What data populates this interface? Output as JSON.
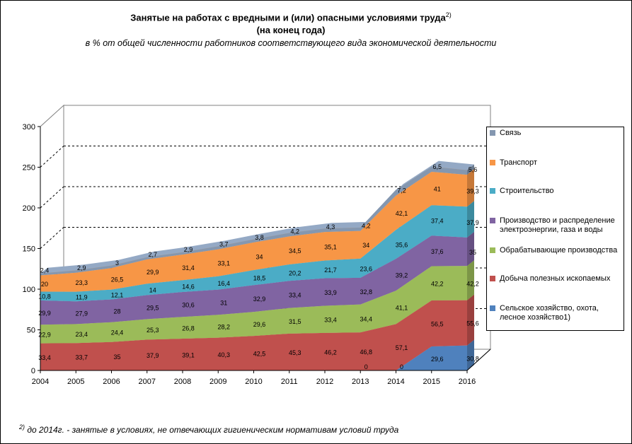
{
  "title_line1": "Занятые на работах с вредными и (или) опасными условиями труда",
  "title_sup": "2)",
  "title_line2": "(на конец года)",
  "subtitle": "в % от общей численности работников соответствующего вида экономической  деятельности",
  "footnote_mark": "2)",
  "footnote": " до 2014г. - занятые в условиях, не отвечающих гигиеническим нормативам условий труда",
  "chart_data": {
    "type": "area",
    "stacked": true,
    "three_d": true,
    "x": [
      "2004",
      "2005",
      "2006",
      "2007",
      "2008",
      "2009",
      "2010",
      "2011",
      "2012",
      "2013",
      "2014",
      "2015",
      "2016"
    ],
    "ylim": [
      0,
      300
    ],
    "yticks": [
      0,
      50,
      100,
      150,
      200,
      250,
      300
    ],
    "grid": "dashed lines on back wall",
    "legend_position": "right",
    "series": [
      {
        "name": "Сельское хозяйство, охота, лесное хозяйство1)",
        "color": "#4f81bd",
        "values": [
          null,
          null,
          null,
          null,
          null,
          null,
          null,
          null,
          null,
          0,
          0,
          29.6,
          30.8
        ],
        "labels": [
          "",
          "",
          "",
          "",
          "",
          "",
          "",
          "",
          "",
          "0",
          "0",
          "29,6",
          "30,8"
        ]
      },
      {
        "name": "Добыча полезных ископаемых",
        "color": "#c0504d",
        "values": [
          33.4,
          33.7,
          35,
          37.9,
          39.1,
          40.3,
          42.5,
          45.3,
          46.2,
          46.8,
          57.1,
          56.5,
          55.6
        ],
        "labels": [
          "33,4",
          "33,7",
          "35",
          "37,9",
          "39,1",
          "40,3",
          "42,5",
          "45,3",
          "46,2",
          "46,8",
          "57,1",
          "56,5",
          "55,6"
        ]
      },
      {
        "name": "Обрабатывающие производства",
        "color": "#9bbb59",
        "values": [
          22.9,
          23.4,
          24.4,
          25.3,
          26.8,
          28.2,
          29.6,
          31.5,
          33.4,
          34.4,
          41.1,
          42.2,
          42.2
        ],
        "labels": [
          "22,9",
          "23,4",
          "24,4",
          "25,3",
          "26,8",
          "28,2",
          "29,6",
          "31,5",
          "33,4",
          "34,4",
          "41,1",
          "42,2",
          "42,2"
        ]
      },
      {
        "name": "Производство и распределение электроэнергии, газа и воды",
        "color": "#8064a2",
        "values": [
          29.9,
          27.9,
          28,
          29.5,
          30.6,
          31,
          32.9,
          33.4,
          33.9,
          32.8,
          39.2,
          37.6,
          35
        ],
        "labels": [
          "29,9",
          "27,9",
          "28",
          "29,5",
          "30,6",
          "31",
          "32,9",
          "33,4",
          "33,9",
          "32,8",
          "39,2",
          "37,6",
          "35"
        ]
      },
      {
        "name": "Строительство",
        "color": "#4bacc6",
        "values": [
          10.8,
          11.9,
          12.1,
          14,
          14.6,
          16.4,
          18.5,
          20.2,
          21.7,
          23.6,
          35.6,
          37.4,
          37.9
        ],
        "labels": [
          "10,8",
          "11,9",
          "12,1",
          "14",
          "14,6",
          "16,4",
          "18,5",
          "20,2",
          "21,7",
          "23,6",
          "35,6",
          "37,4",
          "37,9"
        ]
      },
      {
        "name": "Транспорт",
        "color": "#f79646",
        "values": [
          20,
          23.3,
          26.5,
          29.9,
          31.4,
          33.1,
          34,
          34.5,
          35.1,
          34,
          42.1,
          41,
          39.3
        ],
        "labels": [
          "20",
          "23,3",
          "26,5",
          "29,9",
          "31,4",
          "33,1",
          "34",
          "34,5",
          "35,1",
          "34",
          "42,1",
          "41",
          "39,3"
        ]
      },
      {
        "name": "Связь",
        "color": "#8497b0",
        "values": [
          2.4,
          2.9,
          3,
          2.7,
          2.9,
          3.7,
          3.8,
          4.2,
          4.3,
          4.2,
          7.2,
          6.5,
          5.6
        ],
        "labels": [
          "2,4",
          "2,9",
          "3",
          "2,7",
          "2,9",
          "3,7",
          "3,8",
          "4,2",
          "4,3",
          "4,2",
          "7,2",
          "6,5",
          "5,6"
        ]
      }
    ]
  }
}
